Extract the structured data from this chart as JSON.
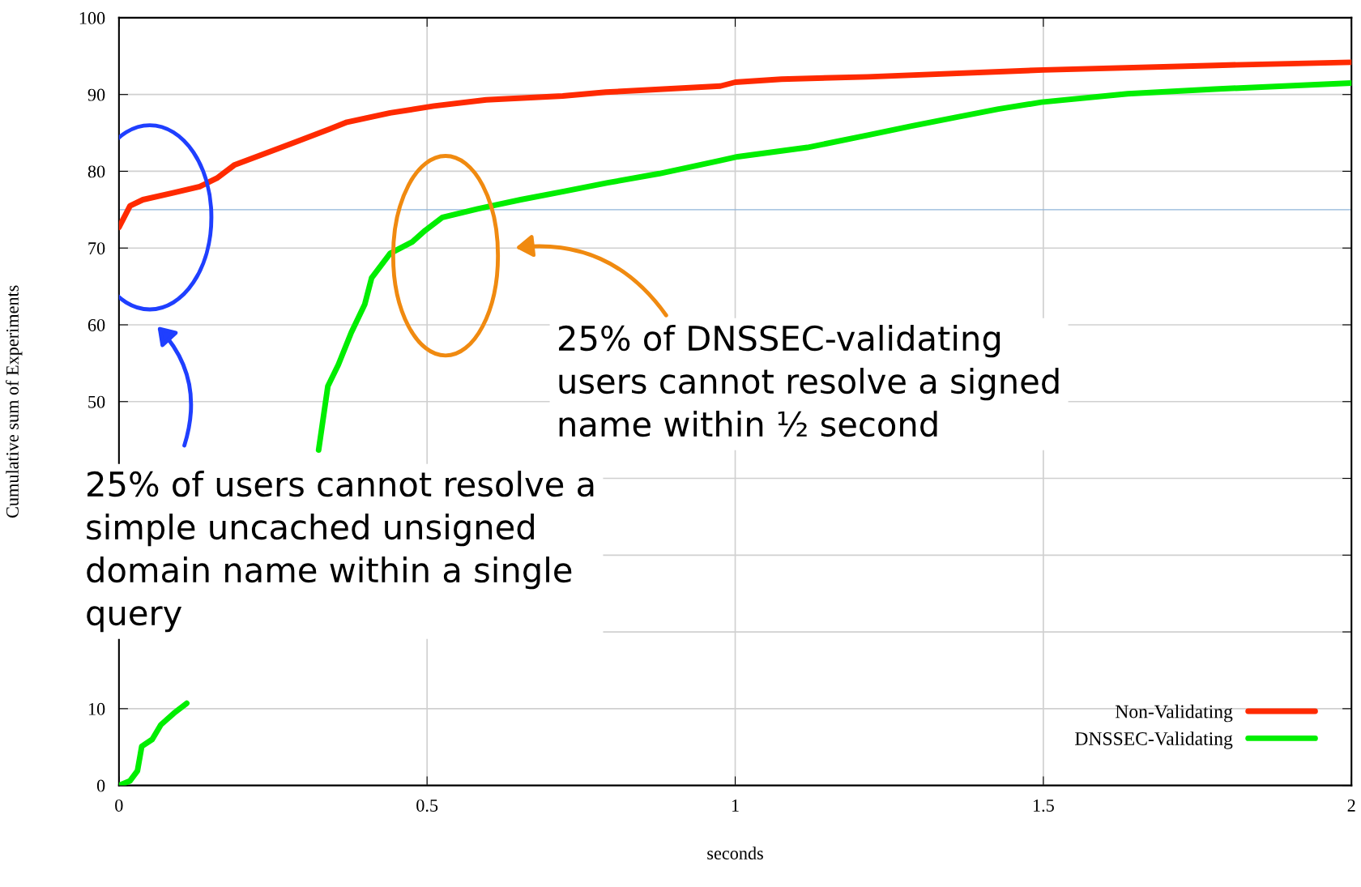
{
  "chart_data": {
    "type": "line",
    "xlabel": "seconds",
    "ylabel": "Cumulative sum of Experiments",
    "xlim": [
      0,
      2
    ],
    "xticks": [
      0,
      0.5,
      1,
      1.5,
      2
    ],
    "ylim": [
      0,
      100
    ],
    "yticks": [
      0,
      10,
      {
        "value": 20,
        "label": null
      },
      {
        "value": 30,
        "label": null
      },
      {
        "value": 40,
        "label": null
      },
      50,
      60,
      70,
      80,
      90,
      100
    ],
    "grid": true,
    "legend": "bottom right",
    "line_style": "solid",
    "marker": "none",
    "ref_lines": [
      {
        "axis": "y",
        "value": 75,
        "label": null,
        "color": "#8fb4d9"
      }
    ],
    "series": [
      {
        "name": "Non-Validating",
        "color": "#ff2a00",
        "x": [
          0,
          0.018,
          0.039,
          0.089,
          0.131,
          0.159,
          0.187,
          0.23,
          0.286,
          0.342,
          0.37,
          0.44,
          0.511,
          0.596,
          0.72,
          0.79,
          0.976,
          1.0,
          1.075,
          1.215,
          1.5,
          1.78,
          2.0
        ],
        "values": [
          72.7,
          75.5,
          76.3,
          77.2,
          78.0,
          79.1,
          80.8,
          82.1,
          83.8,
          85.5,
          86.4,
          87.6,
          88.5,
          89.3,
          89.8,
          90.3,
          91.1,
          91.6,
          92.0,
          92.3,
          93.2,
          93.8,
          94.2
        ]
      },
      {
        "name": "DNSSEC-Validating",
        "color": "#00ee00",
        "x": [
          0,
          0.018,
          0.03,
          0.037,
          0.054,
          0.068,
          0.089,
          0.11,
          0.2,
          0.324,
          0.339,
          0.356,
          0.377,
          0.399,
          0.41,
          0.44,
          0.476,
          0.497,
          0.525,
          0.582,
          0.652,
          0.723,
          0.793,
          0.877,
          0.976,
          1.004,
          1.117,
          1.215,
          1.286,
          1.356,
          1.427,
          1.497,
          1.637,
          1.778,
          2.0
        ],
        "values": [
          0,
          0.6,
          1.9,
          5.1,
          6.0,
          7.9,
          9.4,
          10.7,
          null,
          43.7,
          52.0,
          54.8,
          59.0,
          62.7,
          66.1,
          69.3,
          70.8,
          72.3,
          74.0,
          75.1,
          76.3,
          77.4,
          78.5,
          79.7,
          81.4,
          81.9,
          83.1,
          84.7,
          85.9,
          87.0,
          88.1,
          89.0,
          90.1,
          90.7,
          91.5
        ]
      }
    ],
    "annotations": [
      "25% of users cannot resolve a simple uncached unsigned domain name within a single query",
      "25% of DNSSEC-validating users cannot resolve a signed name within ½ second"
    ]
  }
}
